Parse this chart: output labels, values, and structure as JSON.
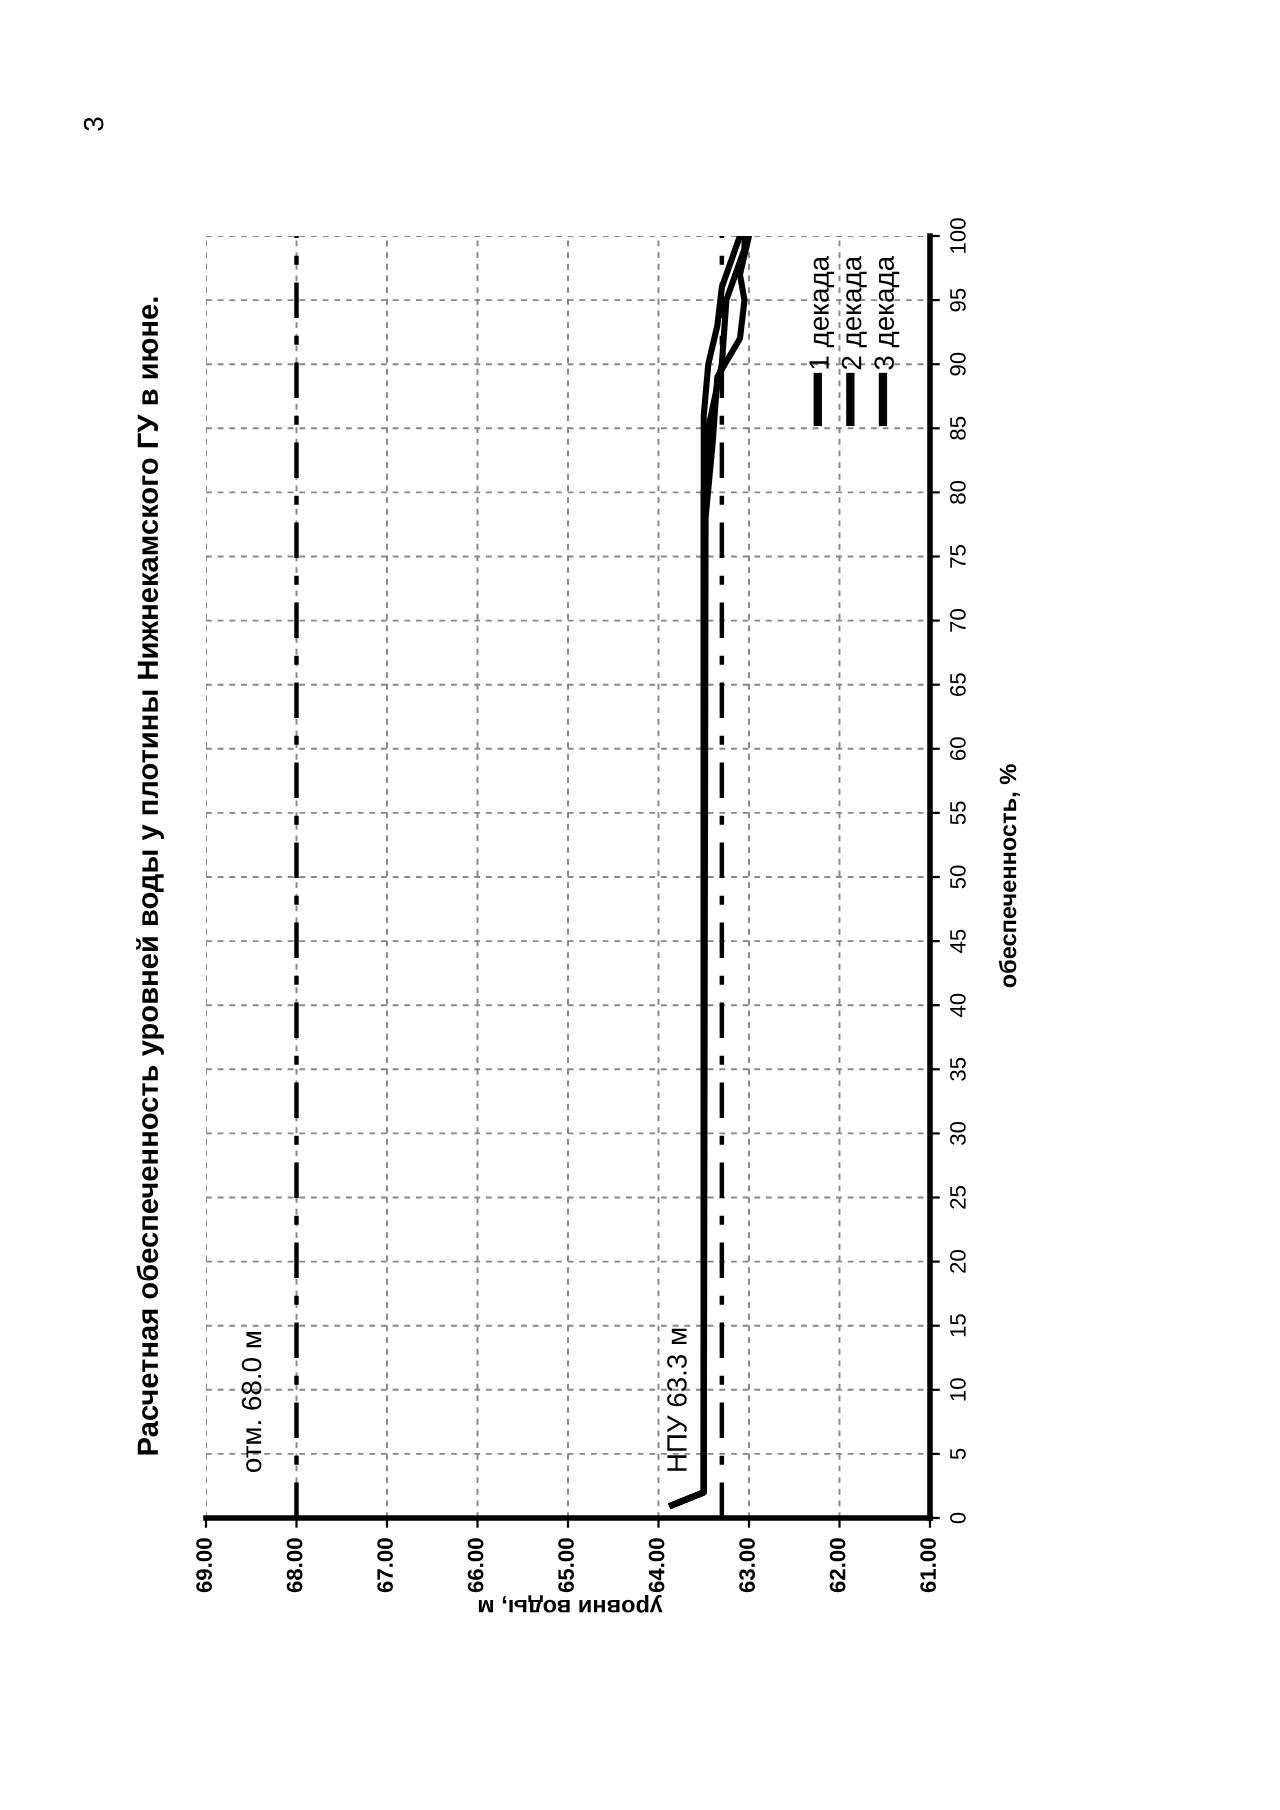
{
  "chart_data": {
    "type": "line",
    "title": "Расчетная обеспеченность уровней воды у плотины Нижнекамского ГУ в июне.",
    "xlabel": "уровни воды, м",
    "ylabel": "обеспеченность, %",
    "ylim": [
      0,
      100
    ],
    "yticks": [
      0,
      5,
      10,
      15,
      20,
      25,
      30,
      35,
      40,
      45,
      50,
      55,
      60,
      65,
      70,
      75,
      80,
      85,
      90,
      95,
      100
    ],
    "xlim": [
      69,
      61
    ],
    "xticks": [
      {
        "value": 61,
        "label": "61.00"
      },
      {
        "value": 62,
        "label": "62.00"
      },
      {
        "value": 63,
        "label": "63.00"
      },
      {
        "value": 64,
        "label": "64.00"
      },
      {
        "value": 65,
        "label": "65.00"
      },
      {
        "value": 66,
        "label": "66.00"
      },
      {
        "value": 67,
        "label": "67.00"
      },
      {
        "value": 68,
        "label": "68.00"
      },
      {
        "value": 69,
        "label": "69.00"
      }
    ],
    "grid": true,
    "legend": "top right",
    "line_style": "solid",
    "marker": "none",
    "series": [
      {
        "name": "1 декада",
        "color": "#000000",
        "values": [
          1,
          2,
          80,
          85,
          90,
          95,
          98,
          99,
          100
        ],
        "x": [
          63.85,
          63.5,
          63.5,
          63.45,
          63.3,
          63.25,
          63.1,
          63.05,
          63.05
        ]
      },
      {
        "name": "2 декада",
        "color": "#000000",
        "values": [
          1,
          2,
          80,
          86,
          90,
          93,
          96,
          99,
          100
        ],
        "x": [
          63.85,
          63.5,
          63.5,
          63.5,
          63.45,
          63.35,
          63.3,
          63.15,
          63.1
        ]
      },
      {
        "name": "3 декада",
        "color": "#000000",
        "values": [
          1,
          2,
          78,
          84,
          89,
          92,
          95,
          97,
          100
        ],
        "x": [
          63.85,
          63.5,
          63.48,
          63.4,
          63.35,
          63.1,
          63.05,
          63.1,
          63.0
        ]
      }
    ],
    "ref_lines": [
      {
        "axis": "x",
        "value": 68.0,
        "label": "отм. 68.0 м",
        "color": "#000000",
        "line_style": "dashdot"
      },
      {
        "axis": "x",
        "value": 63.3,
        "label": "НПУ 63.3 м",
        "color": "#000000",
        "line_style": "dashdot"
      }
    ],
    "annotations": [
      "3"
    ]
  }
}
